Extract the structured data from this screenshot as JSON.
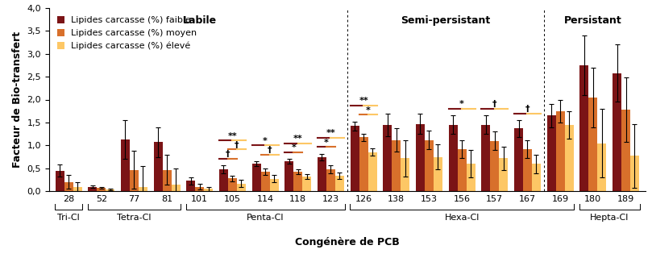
{
  "chart_data": {
    "type": "bar",
    "x_label": "Congénère de PCB",
    "y_label": "Facteur de Bio-transfert",
    "categories": [
      "28",
      "52",
      "77",
      "81",
      "101",
      "105",
      "114",
      "118",
      "123",
      "126",
      "138",
      "153",
      "156",
      "157",
      "167",
      "169",
      "180",
      "189"
    ],
    "series": [
      {
        "name": "Lipides carcasse (%) faible",
        "color": "#7b1416",
        "values": [
          0.45,
          0.1,
          1.13,
          1.07,
          0.23,
          0.48,
          0.6,
          0.65,
          0.75,
          1.42,
          1.45,
          1.47,
          1.45,
          1.45,
          1.37,
          1.65,
          2.75,
          2.58
        ],
        "errors": [
          0.13,
          0.02,
          0.43,
          0.33,
          0.08,
          0.08,
          0.05,
          0.05,
          0.07,
          0.1,
          0.25,
          0.22,
          0.2,
          0.2,
          0.18,
          0.25,
          0.65,
          0.62
        ]
      },
      {
        "name": "Lipides carcasse (%) moyen",
        "color": "#d8702b",
        "values": [
          0.2,
          0.07,
          0.47,
          0.47,
          0.1,
          0.28,
          0.42,
          0.43,
          0.48,
          1.18,
          1.12,
          1.12,
          0.92,
          1.1,
          0.92,
          1.75,
          2.05,
          1.78
        ],
        "errors": [
          0.15,
          0.02,
          0.42,
          0.33,
          0.06,
          0.06,
          0.07,
          0.05,
          0.08,
          0.08,
          0.25,
          0.2,
          0.2,
          0.2,
          0.2,
          0.25,
          0.65,
          0.7
        ]
      },
      {
        "name": "Lipides carcasse (%) élevé",
        "color": "#fdc765",
        "values": [
          0.1,
          0.04,
          0.1,
          0.15,
          0.05,
          0.17,
          0.27,
          0.32,
          0.34,
          0.85,
          0.72,
          0.75,
          0.6,
          0.72,
          0.6,
          1.45,
          1.05,
          0.77
        ],
        "errors": [
          0.1,
          0.02,
          0.45,
          0.35,
          0.05,
          0.08,
          0.08,
          0.06,
          0.07,
          0.08,
          0.4,
          0.27,
          0.3,
          0.25,
          0.2,
          0.3,
          0.75,
          0.7
        ]
      }
    ],
    "ylim": [
      0,
      4.0
    ],
    "yticks": [
      {
        "value": 0,
        "label": "0,0"
      },
      {
        "value": 0.5,
        "label": "0,5"
      },
      {
        "value": 1.0,
        "label": "1,0"
      },
      {
        "value": 1.5,
        "label": "1,5"
      },
      {
        "value": 2.0,
        "label": "2,0"
      },
      {
        "value": 2.5,
        "label": "2,5"
      },
      {
        "value": 3.0,
        "label": "3,0"
      },
      {
        "value": 3.5,
        "label": "3,5"
      },
      {
        "value": 4.0,
        "label": "4,0"
      }
    ],
    "legend": "upper left",
    "regions": [
      {
        "label": "Labile",
        "from": "28",
        "to": "123"
      },
      {
        "label": "Semi-persistant",
        "from": "126",
        "to": "167"
      },
      {
        "label": "Persistant",
        "from": "169",
        "to": "189"
      }
    ],
    "category_groups": [
      {
        "label": "Tri-Cl",
        "from": "28",
        "to": "28"
      },
      {
        "label": "Tetra-Cl",
        "from": "52",
        "to": "81"
      },
      {
        "label": "Penta-Cl",
        "from": "101",
        "to": "123"
      },
      {
        "label": "Hexa-Cl",
        "from": "126",
        "to": "169"
      },
      {
        "label": "Hepta-Cl",
        "from": "180",
        "to": "189"
      }
    ],
    "significance": [
      {
        "category": "105",
        "label": "†",
        "pair": [
          "Lipides carcasse (%) faible",
          "Lipides carcasse (%) moyen"
        ]
      },
      {
        "category": "105",
        "label": "†",
        "pair": [
          "Lipides carcasse (%) moyen",
          "Lipides carcasse (%) élevé"
        ]
      },
      {
        "category": "105",
        "label": "**",
        "pair": [
          "Lipides carcasse (%) faible",
          "Lipides carcasse (%) élevé"
        ]
      },
      {
        "category": "114",
        "label": "†",
        "pair": [
          "Lipides carcasse (%) moyen",
          "Lipides carcasse (%) élevé"
        ]
      },
      {
        "category": "114",
        "label": "*",
        "pair": [
          "Lipides carcasse (%) faible",
          "Lipides carcasse (%) élevé"
        ]
      },
      {
        "category": "118",
        "label": "*",
        "pair": [
          "Lipides carcasse (%) faible",
          "Lipides carcasse (%) moyen"
        ]
      },
      {
        "category": "118",
        "label": "**",
        "pair": [
          "Lipides carcasse (%) faible",
          "Lipides carcasse (%) élevé"
        ]
      },
      {
        "category": "123",
        "label": "*",
        "pair": [
          "Lipides carcasse (%) faible",
          "Lipides carcasse (%) moyen"
        ]
      },
      {
        "category": "123",
        "label": "**",
        "pair": [
          "Lipides carcasse (%) faible",
          "Lipides carcasse (%) élevé"
        ]
      },
      {
        "category": "126",
        "label": "*",
        "pair": [
          "Lipides carcasse (%) moyen",
          "Lipides carcasse (%) élevé"
        ]
      },
      {
        "category": "126",
        "label": "**",
        "pair": [
          "Lipides carcasse (%) faible",
          "Lipides carcasse (%) élevé"
        ]
      },
      {
        "category": "156",
        "label": "*",
        "pair": [
          "Lipides carcasse (%) faible",
          "Lipides carcasse (%) élevé"
        ]
      },
      {
        "category": "157",
        "label": "†",
        "pair": [
          "Lipides carcasse (%) faible",
          "Lipides carcasse (%) élevé"
        ]
      },
      {
        "category": "167",
        "label": "†",
        "pair": [
          "Lipides carcasse (%) faible",
          "Lipides carcasse (%) élevé"
        ]
      }
    ]
  }
}
